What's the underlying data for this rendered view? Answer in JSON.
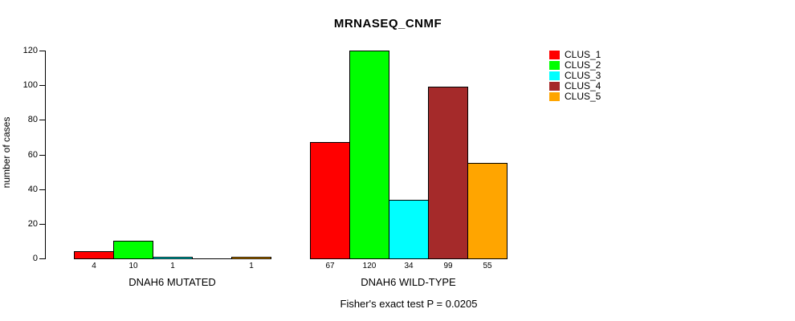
{
  "title": "MRNASEQ_CNMF",
  "y_axis": {
    "label": "number of cases"
  },
  "footnote": "Fisher's exact test P = 0.0205",
  "legend": [
    {
      "label": "CLUS_1",
      "color": "#FF0000"
    },
    {
      "label": "CLUS_2",
      "color": "#00FF00"
    },
    {
      "label": "CLUS_3",
      "color": "#00FFFF"
    },
    {
      "label": "CLUS_4",
      "color": "#A52A2A"
    },
    {
      "label": "CLUS_5",
      "color": "#FFA500"
    }
  ],
  "chart_data": {
    "type": "bar",
    "title": "MRNASEQ_CNMF",
    "xlabel": "",
    "ylabel": "number of cases",
    "ylim": [
      0,
      120
    ],
    "yticks": [
      0,
      20,
      40,
      60,
      80,
      100,
      120
    ],
    "grid": false,
    "legend_position": "right",
    "series_names": [
      "CLUS_1",
      "CLUS_2",
      "CLUS_3",
      "CLUS_4",
      "CLUS_5"
    ],
    "series_colors": [
      "#FF0000",
      "#00FF00",
      "#00FFFF",
      "#A52A2A",
      "#FFA500"
    ],
    "groups": [
      {
        "label": "DNAH6 MUTATED",
        "values": [
          4,
          10,
          1,
          0,
          1
        ],
        "bar_labels": [
          "4",
          "10",
          "1",
          "",
          "1"
        ]
      },
      {
        "label": "DNAH6 WILD-TYPE",
        "values": [
          67,
          120,
          34,
          99,
          55
        ],
        "bar_labels": [
          "67",
          "120",
          "34",
          "99",
          "55"
        ]
      }
    ],
    "annotation": "Fisher's exact test P = 0.0205"
  }
}
